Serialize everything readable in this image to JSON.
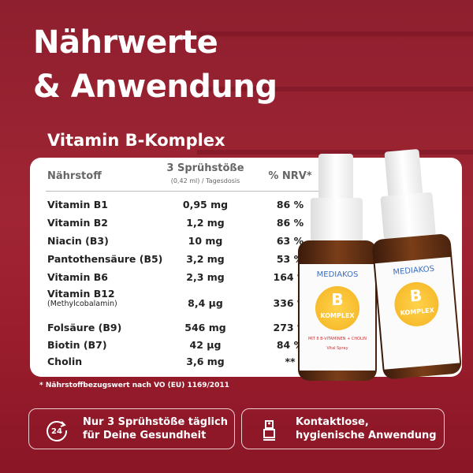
{
  "title_line1": "Nährwerte",
  "title_line2": "& Anwendung",
  "subtitle": "Vitamin B-Komplex",
  "table": {
    "headers": {
      "nutrient": "Nährstoff",
      "dose": "3 Sprühstöße",
      "dose_sub": "(0,42 ml) / Tagesdosis",
      "nrv": "% NRV*"
    },
    "rows": [
      {
        "name": "Vitamin B1",
        "amount": "0,95 mg",
        "nrv": "86 %"
      },
      {
        "name": "Vitamin B2",
        "amount": "1,2 mg",
        "nrv": "86 %"
      },
      {
        "name": "Niacin (B3)",
        "amount": "10 mg",
        "nrv": "63 %"
      },
      {
        "name": "Pantothensäure (B5)",
        "amount": "3,2 mg",
        "nrv": "53 %"
      },
      {
        "name": "Vitamin B6",
        "amount": "2,3 mg",
        "nrv": "164 %"
      },
      {
        "name": "Vitamin B12",
        "sub": "(Methylcobalamin)",
        "amount": "8,4 µg",
        "nrv": "336 %"
      },
      {
        "name": "Folsäure (B9)",
        "amount": "546 mg",
        "nrv": "273 %"
      },
      {
        "name": "Biotin (B7)",
        "amount": "42 µg",
        "nrv": "84 %"
      },
      {
        "name": "Cholin",
        "amount": "3,6 mg",
        "nrv": "**"
      }
    ]
  },
  "footnote": "* Nährstoffbezugswert nach VO (EU) 1169/2011",
  "features": [
    {
      "icon": "24h-cycle-icon",
      "line1": "Nur 3 Sprühstöße täglich",
      "line2": "für Deine Gesundheit",
      "icon_text": "24"
    },
    {
      "icon": "spray-bottle-icon",
      "line1": "Kontaktlose,",
      "line2": "hygienische Anwendung"
    }
  ],
  "product": {
    "brand": "MEDIAKOS",
    "letter": "B",
    "name": "KOMPLEX",
    "tagline": "MIT 8 B-VITAMINEN + CHOLIN",
    "type": "Vital Spray"
  },
  "colors": {
    "background": "#9a1f30",
    "accent": "#f4b322",
    "brand": "#3a6fc4"
  }
}
